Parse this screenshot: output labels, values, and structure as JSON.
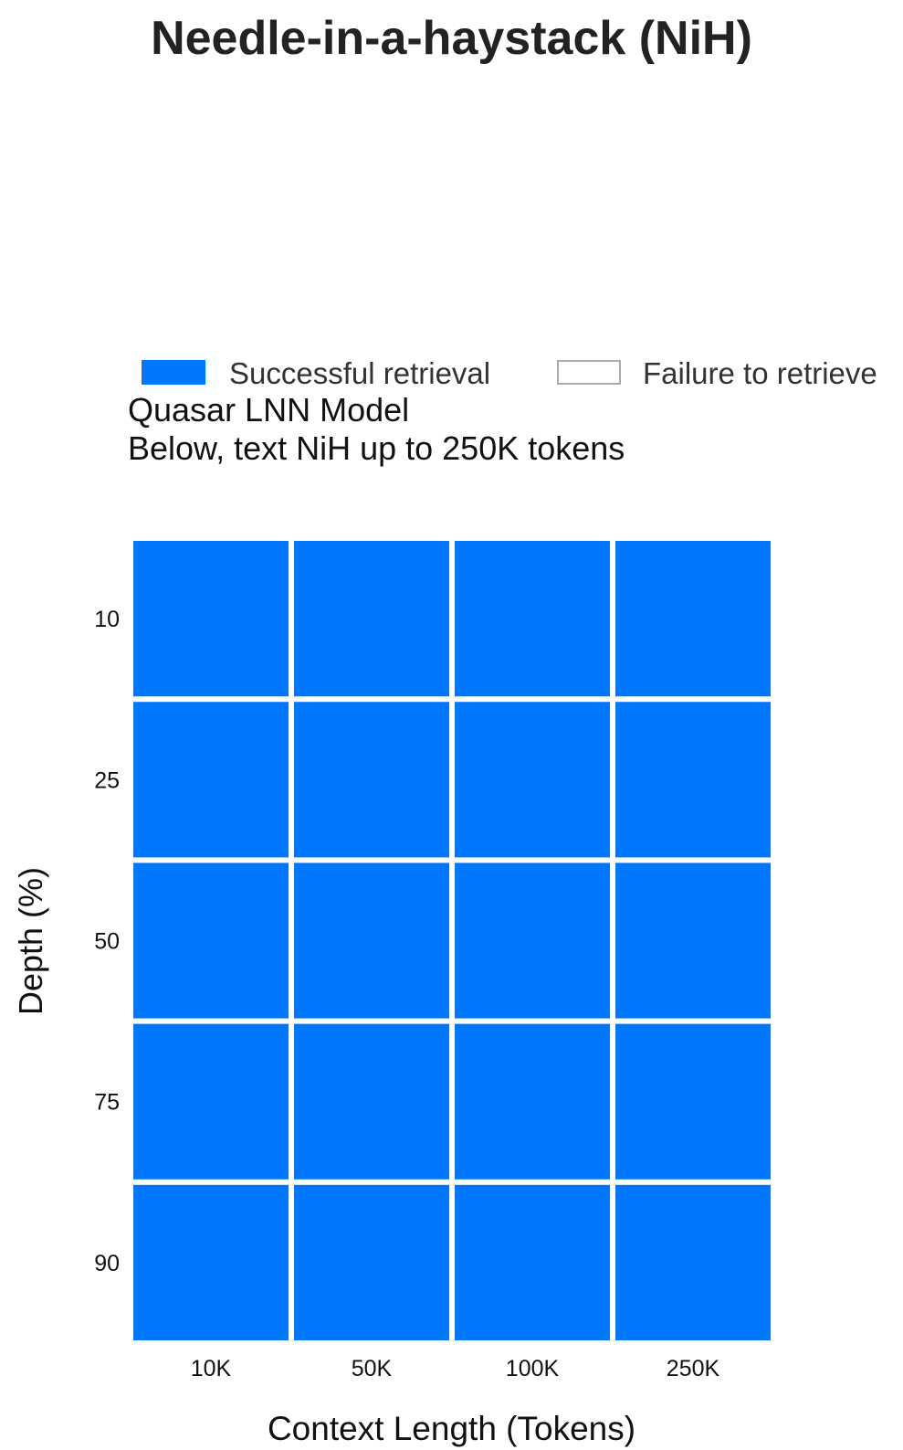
{
  "title": "Needle-in-a-haystack (NiH)",
  "legend": {
    "success_label": "Successful retrieval",
    "failure_label": "Failure to retrieve"
  },
  "subtitle": {
    "line1": "Quasar LNN Model",
    "line2": "Below, text NiH up to 250K tokens"
  },
  "colors": {
    "success": "#0077ff",
    "failure": "#ffffff"
  },
  "chart_data": {
    "type": "heatmap",
    "title": "Needle-in-a-haystack (NiH)",
    "xlabel": "Context Length (Tokens)",
    "ylabel": "Depth (%)",
    "x_categories": [
      "10K",
      "50K",
      "100K",
      "250K"
    ],
    "y_categories": [
      "10",
      "25",
      "50",
      "75",
      "90"
    ],
    "values": [
      [
        "success",
        "success",
        "success",
        "success"
      ],
      [
        "success",
        "success",
        "success",
        "success"
      ],
      [
        "success",
        "success",
        "success",
        "success"
      ],
      [
        "success",
        "success",
        "success",
        "success"
      ],
      [
        "success",
        "success",
        "success",
        "success"
      ]
    ],
    "legend_placement": "top",
    "grid": false
  }
}
